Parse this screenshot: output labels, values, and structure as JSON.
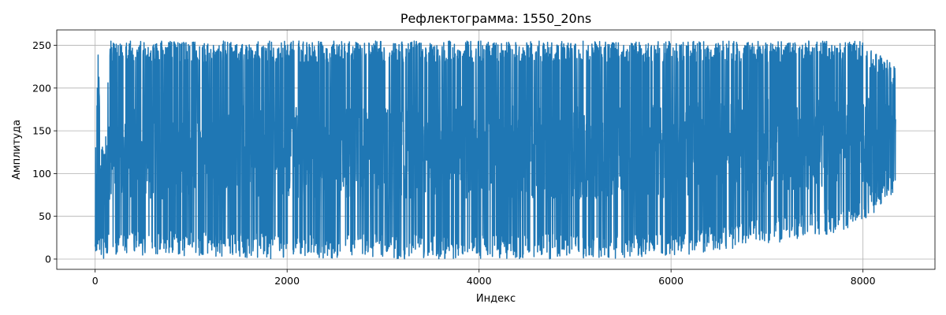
{
  "chart_data": {
    "type": "line",
    "title": "Рефлектограмма: 1550_20ns",
    "xlabel": "Индекс",
    "ylabel": "Амплитуда",
    "xlim": [
      -400,
      8750
    ],
    "ylim": [
      -12,
      268
    ],
    "xticks": [
      0,
      2000,
      4000,
      6000,
      8000
    ],
    "yticks": [
      0,
      50,
      100,
      150,
      200,
      250
    ],
    "grid": true,
    "legend": "none",
    "series": [
      {
        "color": "#1f77b4",
        "x_start": 0,
        "x_end": 8340,
        "profile": [
          {
            "x": 0,
            "low": 0,
            "high": 118,
            "base": 60
          },
          {
            "x": 30,
            "low": 0,
            "high": 255,
            "base": 80
          },
          {
            "x": 60,
            "low": 0,
            "high": 125,
            "base": 70
          },
          {
            "x": 100,
            "low": 0,
            "high": 140,
            "base": 70
          },
          {
            "x": 150,
            "low": 0,
            "high": 255,
            "base": 120
          },
          {
            "x": 300,
            "low": 5,
            "high": 255,
            "base": 125
          },
          {
            "x": 2000,
            "low": 0,
            "high": 255,
            "base": 125
          },
          {
            "x": 4000,
            "low": 0,
            "high": 255,
            "base": 125
          },
          {
            "x": 5800,
            "low": 0,
            "high": 255,
            "base": 125
          },
          {
            "x": 6500,
            "low": 10,
            "high": 255,
            "base": 130
          },
          {
            "x": 7500,
            "low": 25,
            "high": 255,
            "base": 135
          },
          {
            "x": 8000,
            "low": 40,
            "high": 255,
            "base": 135
          },
          {
            "x": 8340,
            "low": 80,
            "high": 225,
            "base": 130
          }
        ]
      }
    ]
  }
}
